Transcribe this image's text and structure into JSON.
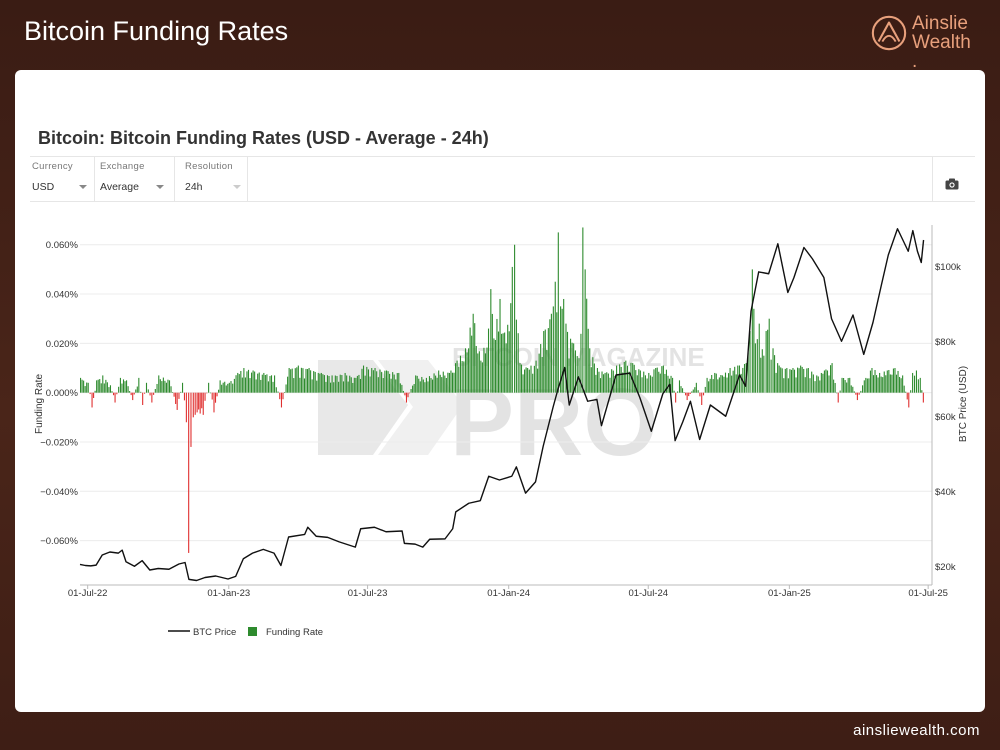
{
  "header": {
    "title": "Bitcoin Funding Rates"
  },
  "brand": {
    "line1": "Ainslie",
    "line2": "Wealth",
    "dot": ".",
    "color": "#e8a07c"
  },
  "footer": {
    "url": "ainsliewealth.com"
  },
  "controls": [
    {
      "label": "Currency",
      "value": "USD"
    },
    {
      "label": "Exchange",
      "value": "Average"
    },
    {
      "label": "Resolution",
      "value": "24h"
    }
  ],
  "camera_icon": "camera-icon",
  "watermark": {
    "line1": "BITCOIN MAGAZINE",
    "line2": "PRO"
  },
  "chart_data": {
    "type": "bar+line",
    "title": "Bitcoin: Bitcoin Funding Rates (USD - Average - 24h)",
    "ylabel_left": "Funding Rate",
    "ylabel_right": "BTC Price (USD)",
    "left_ticks": [
      "0.060%",
      "0.040%",
      "0.020%",
      "0.000%",
      "−0.020%",
      "−0.040%",
      "−0.060%"
    ],
    "left_tick_values": [
      0.06,
      0.04,
      0.02,
      0.0,
      -0.02,
      -0.04,
      -0.06
    ],
    "ylim_left": [
      -0.078,
      0.068
    ],
    "right_ticks": [
      "$100k",
      "$80k",
      "$60k",
      "$40k",
      "$20k"
    ],
    "right_tick_values": [
      100000,
      80000,
      60000,
      40000,
      20000
    ],
    "ylim_right": [
      15000,
      111000
    ],
    "x_ticks": [
      "01-Jul-22",
      "01-Jan-23",
      "01-Jul-23",
      "01-Jan-24",
      "01-Jul-24",
      "01-Jan-25",
      "01-Jul-25"
    ],
    "xlim": [
      "2022-06-21",
      "2025-07-06"
    ],
    "legend": [
      "BTC Price",
      "Funding Rate"
    ],
    "legend_position": "bottom-left",
    "colors": {
      "positive": "#2e8b2e",
      "negative": "#e03030",
      "price": "#111111"
    },
    "series": [
      {
        "name": "BTC Price",
        "type": "line",
        "points": [
          [
            "2022-06-21",
            20500
          ],
          [
            "2022-06-28",
            20200
          ],
          [
            "2022-07-05",
            20100
          ],
          [
            "2022-07-12",
            20300
          ],
          [
            "2022-07-20",
            23000
          ],
          [
            "2022-07-30",
            23800
          ],
          [
            "2022-08-10",
            23500
          ],
          [
            "2022-08-15",
            24300
          ],
          [
            "2022-08-20",
            21200
          ],
          [
            "2022-08-31",
            20000
          ],
          [
            "2022-09-10",
            21500
          ],
          [
            "2022-09-20",
            19000
          ],
          [
            "2022-10-01",
            19400
          ],
          [
            "2022-10-15",
            19200
          ],
          [
            "2022-10-28",
            20600
          ],
          [
            "2022-11-05",
            21000
          ],
          [
            "2022-11-10",
            16500
          ],
          [
            "2022-11-20",
            16200
          ],
          [
            "2022-12-01",
            17000
          ],
          [
            "2022-12-15",
            17400
          ],
          [
            "2022-12-31",
            16600
          ],
          [
            "2023-01-10",
            17300
          ],
          [
            "2023-01-20",
            22000
          ],
          [
            "2023-02-01",
            23500
          ],
          [
            "2023-02-15",
            24500
          ],
          [
            "2023-03-01",
            23500
          ],
          [
            "2023-03-10",
            20200
          ],
          [
            "2023-03-20",
            27800
          ],
          [
            "2023-04-10",
            28500
          ],
          [
            "2023-04-14",
            30400
          ],
          [
            "2023-04-25",
            28000
          ],
          [
            "2023-05-10",
            27700
          ],
          [
            "2023-05-25",
            26500
          ],
          [
            "2023-06-15",
            25100
          ],
          [
            "2023-06-22",
            30000
          ],
          [
            "2023-07-10",
            30400
          ],
          [
            "2023-07-25",
            29200
          ],
          [
            "2023-08-15",
            29400
          ],
          [
            "2023-08-18",
            26100
          ],
          [
            "2023-09-01",
            25900
          ],
          [
            "2023-09-11",
            25100
          ],
          [
            "2023-09-20",
            27200
          ],
          [
            "2023-10-10",
            27300
          ],
          [
            "2023-10-20",
            30000
          ],
          [
            "2023-10-24",
            34500
          ],
          [
            "2023-11-10",
            36800
          ],
          [
            "2023-11-25",
            37500
          ],
          [
            "2023-12-06",
            44000
          ],
          [
            "2023-12-20",
            43000
          ],
          [
            "2024-01-05",
            44000
          ],
          [
            "2024-01-11",
            46500
          ],
          [
            "2024-01-23",
            39500
          ],
          [
            "2024-02-05",
            42500
          ],
          [
            "2024-02-15",
            52000
          ],
          [
            "2024-02-28",
            62500
          ],
          [
            "2024-03-05",
            67000
          ],
          [
            "2024-03-14",
            73000
          ],
          [
            "2024-03-20",
            63000
          ],
          [
            "2024-04-01",
            70500
          ],
          [
            "2024-04-13",
            64000
          ],
          [
            "2024-04-25",
            64500
          ],
          [
            "2024-05-01",
            57500
          ],
          [
            "2024-05-20",
            71000
          ],
          [
            "2024-06-07",
            71500
          ],
          [
            "2024-06-20",
            65000
          ],
          [
            "2024-07-05",
            56000
          ],
          [
            "2024-07-20",
            66000
          ],
          [
            "2024-07-29",
            68500
          ],
          [
            "2024-08-05",
            53500
          ],
          [
            "2024-08-15",
            58500
          ],
          [
            "2024-08-25",
            64000
          ],
          [
            "2024-09-06",
            53800
          ],
          [
            "2024-09-20",
            63000
          ],
          [
            "2024-10-10",
            60000
          ],
          [
            "2024-10-28",
            71000
          ],
          [
            "2024-11-05",
            68000
          ],
          [
            "2024-11-12",
            88000
          ],
          [
            "2024-11-22",
            98500
          ],
          [
            "2024-12-05",
            98000
          ],
          [
            "2024-12-17",
            106000
          ],
          [
            "2024-12-30",
            93000
          ],
          [
            "2025-01-07",
            97000
          ],
          [
            "2025-01-20",
            105000
          ],
          [
            "2025-01-31",
            102000
          ],
          [
            "2025-02-15",
            97000
          ],
          [
            "2025-02-25",
            86000
          ],
          [
            "2025-03-10",
            80000
          ],
          [
            "2025-03-25",
            87000
          ],
          [
            "2025-04-08",
            76500
          ],
          [
            "2025-04-20",
            85000
          ],
          [
            "2025-05-01",
            95000
          ],
          [
            "2025-05-10",
            103000
          ],
          [
            "2025-05-22",
            110000
          ],
          [
            "2025-06-05",
            104000
          ],
          [
            "2025-06-11",
            109500
          ],
          [
            "2025-06-17",
            104000
          ],
          [
            "2025-06-22",
            101000
          ],
          [
            "2025-06-25",
            107000
          ]
        ]
      },
      {
        "name": "Funding Rate",
        "type": "bar",
        "points": [
          [
            "2022-06-21",
            0.006
          ],
          [
            "2022-07-01",
            0.004
          ],
          [
            "2022-07-06",
            -0.006
          ],
          [
            "2022-07-12",
            0.005
          ],
          [
            "2022-07-20",
            0.007
          ],
          [
            "2022-07-30",
            0.003
          ],
          [
            "2022-08-05",
            -0.004
          ],
          [
            "2022-08-12",
            0.006
          ],
          [
            "2022-08-20",
            0.005
          ],
          [
            "2022-08-28",
            -0.003
          ],
          [
            "2022-09-05",
            0.006
          ],
          [
            "2022-09-10",
            -0.005
          ],
          [
            "2022-09-15",
            0.004
          ],
          [
            "2022-09-22",
            -0.004
          ],
          [
            "2022-10-01",
            0.007
          ],
          [
            "2022-10-15",
            0.005
          ],
          [
            "2022-10-25",
            -0.007
          ],
          [
            "2022-11-01",
            0.004
          ],
          [
            "2022-11-06",
            -0.012
          ],
          [
            "2022-11-09",
            -0.065
          ],
          [
            "2022-11-12",
            -0.022
          ],
          [
            "2022-11-15",
            -0.01
          ],
          [
            "2022-11-20",
            -0.008
          ],
          [
            "2022-11-28",
            -0.009
          ],
          [
            "2022-12-05",
            0.004
          ],
          [
            "2022-12-12",
            -0.008
          ],
          [
            "2022-12-20",
            0.005
          ],
          [
            "2023-01-01",
            0.004
          ],
          [
            "2023-01-12",
            0.008
          ],
          [
            "2023-01-20",
            0.01
          ],
          [
            "2023-02-01",
            0.009
          ],
          [
            "2023-02-15",
            0.008
          ],
          [
            "2023-03-01",
            0.007
          ],
          [
            "2023-03-10",
            -0.006
          ],
          [
            "2023-03-20",
            0.01
          ],
          [
            "2023-04-01",
            0.011
          ],
          [
            "2023-04-15",
            0.01
          ],
          [
            "2023-05-01",
            0.008
          ],
          [
            "2023-05-15",
            0.007
          ],
          [
            "2023-06-01",
            0.008
          ],
          [
            "2023-06-15",
            0.006
          ],
          [
            "2023-06-25",
            0.011
          ],
          [
            "2023-07-10",
            0.01
          ],
          [
            "2023-07-25",
            0.009
          ],
          [
            "2023-08-10",
            0.008
          ],
          [
            "2023-08-20",
            -0.004
          ],
          [
            "2023-09-01",
            0.007
          ],
          [
            "2023-09-15",
            0.006
          ],
          [
            "2023-10-01",
            0.009
          ],
          [
            "2023-10-15",
            0.008
          ],
          [
            "2023-10-25",
            0.013
          ],
          [
            "2023-11-05",
            0.018
          ],
          [
            "2023-11-15",
            0.032
          ],
          [
            "2023-11-25",
            0.013
          ],
          [
            "2023-12-05",
            0.026
          ],
          [
            "2023-12-08",
            0.042
          ],
          [
            "2023-12-12",
            0.022
          ],
          [
            "2023-12-20",
            0.038
          ],
          [
            "2023-12-28",
            0.02
          ],
          [
            "2024-01-05",
            0.051
          ],
          [
            "2024-01-08",
            0.06
          ],
          [
            "2024-01-15",
            0.012
          ],
          [
            "2024-01-25",
            0.01
          ],
          [
            "2024-02-05",
            0.013
          ],
          [
            "2024-02-15",
            0.025
          ],
          [
            "2024-02-25",
            0.032
          ],
          [
            "2024-03-01",
            0.045
          ],
          [
            "2024-03-05",
            0.065
          ],
          [
            "2024-03-08",
            0.035
          ],
          [
            "2024-03-12",
            0.038
          ],
          [
            "2024-03-15",
            0.028
          ],
          [
            "2024-03-25",
            0.02
          ],
          [
            "2024-04-01",
            0.014
          ],
          [
            "2024-04-06",
            0.067
          ],
          [
            "2024-04-09",
            0.05
          ],
          [
            "2024-04-15",
            0.018
          ],
          [
            "2024-04-25",
            0.01
          ],
          [
            "2024-05-05",
            0.008
          ],
          [
            "2024-05-20",
            0.011
          ],
          [
            "2024-06-01",
            0.013
          ],
          [
            "2024-06-10",
            0.012
          ],
          [
            "2024-06-20",
            0.009
          ],
          [
            "2024-07-01",
            0.008
          ],
          [
            "2024-07-10",
            0.01
          ],
          [
            "2024-07-20",
            0.011
          ],
          [
            "2024-08-01",
            0.006
          ],
          [
            "2024-08-05",
            -0.004
          ],
          [
            "2024-08-10",
            0.005
          ],
          [
            "2024-08-20",
            -0.003
          ],
          [
            "2024-09-01",
            0.004
          ],
          [
            "2024-09-08",
            -0.005
          ],
          [
            "2024-09-15",
            0.006
          ],
          [
            "2024-09-25",
            0.008
          ],
          [
            "2024-10-05",
            0.007
          ],
          [
            "2024-10-15",
            0.01
          ],
          [
            "2024-10-25",
            0.011
          ],
          [
            "2024-11-05",
            0.012
          ],
          [
            "2024-11-10",
            0.025
          ],
          [
            "2024-11-13",
            0.05
          ],
          [
            "2024-11-17",
            0.02
          ],
          [
            "2024-11-22",
            0.028
          ],
          [
            "2024-11-28",
            0.015
          ],
          [
            "2024-12-01",
            0.025
          ],
          [
            "2024-12-05",
            0.03
          ],
          [
            "2024-12-10",
            0.018
          ],
          [
            "2024-12-18",
            0.011
          ],
          [
            "2024-12-28",
            0.01
          ],
          [
            "2025-01-05",
            0.01
          ],
          [
            "2025-01-15",
            0.011
          ],
          [
            "2025-01-25",
            0.01
          ],
          [
            "2025-02-05",
            0.007
          ],
          [
            "2025-02-15",
            0.009
          ],
          [
            "2025-02-25",
            0.012
          ],
          [
            "2025-03-05",
            -0.004
          ],
          [
            "2025-03-10",
            0.006
          ],
          [
            "2025-03-20",
            0.006
          ],
          [
            "2025-03-30",
            -0.003
          ],
          [
            "2025-04-08",
            0.005
          ],
          [
            "2025-04-18",
            0.01
          ],
          [
            "2025-04-28",
            0.008
          ],
          [
            "2025-05-08",
            0.009
          ],
          [
            "2025-05-18",
            0.01
          ],
          [
            "2025-05-28",
            0.007
          ],
          [
            "2025-06-05",
            -0.006
          ],
          [
            "2025-06-10",
            0.008
          ],
          [
            "2025-06-15",
            0.009
          ],
          [
            "2025-06-20",
            0.006
          ],
          [
            "2025-06-24",
            -0.004
          ]
        ]
      }
    ]
  }
}
